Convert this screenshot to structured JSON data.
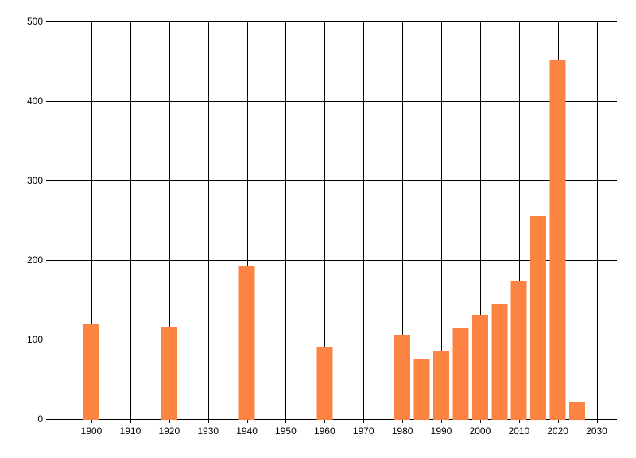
{
  "chart_data": {
    "type": "bar",
    "title": "",
    "xlabel": "",
    "ylabel": "",
    "x": [
      1900,
      1920,
      1940,
      1960,
      1980,
      1985,
      1990,
      1995,
      2000,
      2005,
      2010,
      2015,
      2020,
      2025
    ],
    "values": [
      119,
      116,
      192,
      90,
      106,
      76,
      85,
      114,
      131,
      145,
      174,
      255,
      452,
      22
    ],
    "xticks": [
      1900,
      1910,
      1920,
      1930,
      1940,
      1950,
      1960,
      1970,
      1980,
      1990,
      2000,
      2010,
      2020,
      2030
    ],
    "yticks": [
      0,
      100,
      200,
      300,
      400,
      500
    ],
    "xlim": [
      1889.77,
      2035.21
    ],
    "ylim": [
      0,
      500
    ],
    "grid": true,
    "legend_position": "none",
    "bar_width_years": 4.1,
    "bar_color": "#fc8341",
    "grid_color": "#000000",
    "axis_color": "#000000",
    "text_color": "#000000",
    "background_color": "#ffffff"
  }
}
